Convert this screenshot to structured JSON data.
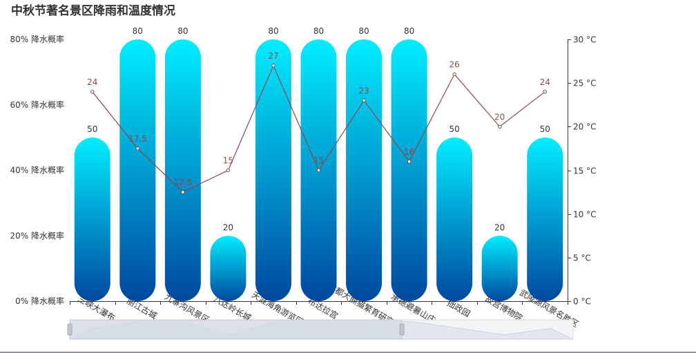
{
  "chart_data": {
    "type": "bar",
    "title": "中秋节著名景区降雨和温度情况",
    "categories": [
      "三峡大瀑布",
      "丽江古城",
      "九寨沟风景区",
      "八达岭长城",
      "天涯海角游览区",
      "布达拉宫",
      "成都大熊猫繁育研究基地",
      "承德避暑山庄",
      "拙政园",
      "故宫博物院",
      "武陵源风景名胜区"
    ],
    "series": [
      {
        "type": "bar",
        "values": [
          50,
          80,
          80,
          20,
          80,
          80,
          80,
          80,
          50,
          20,
          50
        ]
      },
      {
        "type": "line",
        "values": [
          24,
          17.5,
          12.5,
          15,
          27,
          15,
          23,
          16,
          26,
          20,
          24
        ]
      }
    ],
    "y_left": {
      "ticks": [
        "0% 降水概率",
        "20% 降水概率",
        "40% 降水概率",
        "60% 降水概率",
        "80% 降水概率"
      ],
      "range": [
        0,
        80
      ]
    },
    "y_right": {
      "ticks": [
        "0 °C",
        "5 °C",
        "10 °C",
        "15 °C",
        "20 °C",
        "25 °C",
        "30 °C"
      ],
      "range": [
        0,
        30
      ]
    },
    "grid": false,
    "legend": "none",
    "colors": {
      "bar_top": "#00eeff",
      "bar_bottom": "#0048a0",
      "line": "#8b4a4a",
      "datazoom_fill": "#d3dae5",
      "datazoom_border": "#c2c8d3"
    },
    "data_zoom": {
      "start": 0,
      "end": 0.66
    }
  }
}
